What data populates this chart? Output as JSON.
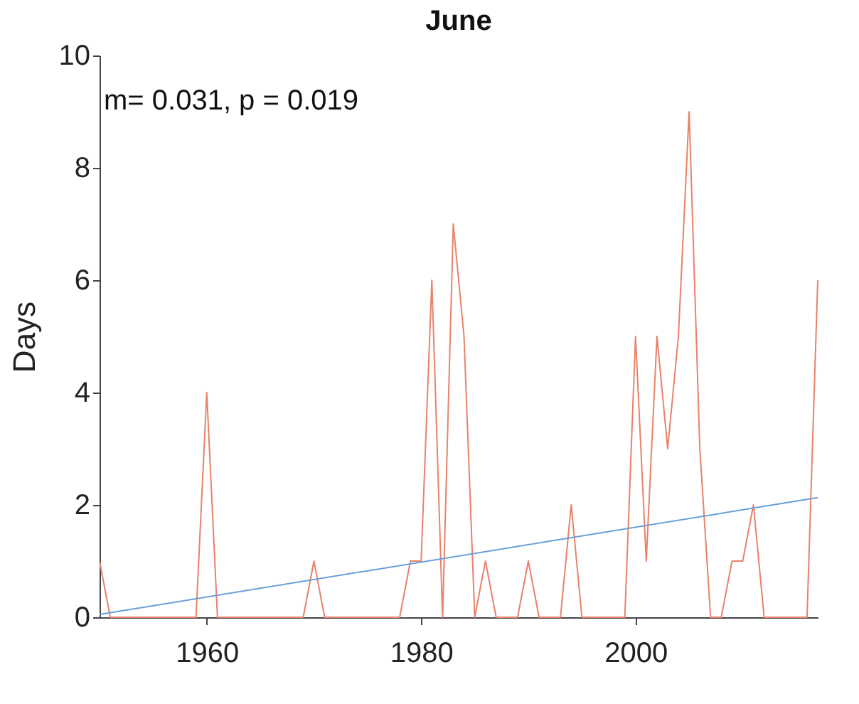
{
  "chart_data": {
    "type": "line",
    "title": "June",
    "ylabel": "Days",
    "annotations": [
      "m= 0.031, p = 0.019"
    ],
    "xlim": [
      1950,
      2017
    ],
    "xticks": [
      1960,
      1980,
      2000
    ],
    "ylim": [
      0,
      10
    ],
    "yticks": [
      0,
      2,
      4,
      6,
      8,
      10
    ],
    "grid": false,
    "marker": "none",
    "line_style": "solid",
    "series": [
      {
        "color": "#e8826a",
        "x": [
          1950,
          1951,
          1952,
          1953,
          1954,
          1955,
          1956,
          1957,
          1958,
          1959,
          1960,
          1961,
          1962,
          1963,
          1964,
          1965,
          1966,
          1967,
          1968,
          1969,
          1970,
          1971,
          1972,
          1973,
          1974,
          1975,
          1976,
          1977,
          1978,
          1979,
          1980,
          1981,
          1982,
          1983,
          1984,
          1985,
          1986,
          1987,
          1988,
          1989,
          1990,
          1991,
          1992,
          1993,
          1994,
          1995,
          1996,
          1997,
          1998,
          1999,
          2000,
          2001,
          2002,
          2003,
          2004,
          2005,
          2006,
          2007,
          2008,
          2009,
          2010,
          2011,
          2012,
          2013,
          2014,
          2015,
          2016,
          2017
        ],
        "values": [
          1,
          0,
          0,
          0,
          0,
          0,
          0,
          0,
          0,
          0,
          4,
          0,
          0,
          0,
          0,
          0,
          0,
          0,
          0,
          0,
          1,
          0,
          0,
          0,
          0,
          0,
          0,
          0,
          0,
          1,
          1,
          6,
          0,
          7,
          5,
          0,
          1,
          0,
          0,
          0,
          1,
          0,
          0,
          0,
          2,
          0,
          0,
          0,
          0,
          0,
          5,
          1,
          5,
          3,
          5,
          9,
          3,
          0,
          0,
          1,
          1,
          2,
          0,
          0,
          0,
          0,
          0,
          6
        ]
      },
      {
        "color": "#6a9fd8",
        "x": [
          1950,
          2017
        ],
        "values": [
          0.05,
          2.13
        ]
      }
    ]
  }
}
